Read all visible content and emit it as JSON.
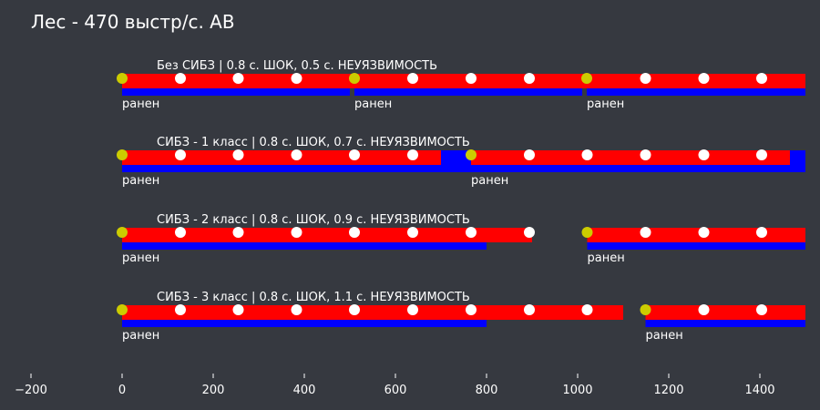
{
  "chart_data": {
    "type": "timeline",
    "title": "Лес - 470 выстр/с. АВ",
    "xlim": [
      -200,
      1500
    ],
    "xticks": [
      -200,
      0,
      200,
      400,
      600,
      800,
      1000,
      1200,
      1400
    ],
    "colors": {
      "stun": "#ff0000",
      "invulnerability": "#0000ff",
      "hit": "#cccc00",
      "shot": "#ffffff",
      "background": "#363940",
      "text": "#ffffff"
    },
    "hit_label": "ранен",
    "rows": [
      {
        "title": "Без СИБЗ | 0.8 с. ШОК, 0.5 с. НЕУЯЗВИМОСТЬ",
        "stun": [
          [
            0,
            510
          ],
          [
            510,
            1020
          ],
          [
            1020,
            1500
          ]
        ],
        "invulnerability": [
          [
            0,
            500
          ],
          [
            510,
            1010
          ],
          [
            1020,
            1500
          ]
        ],
        "hits": [
          0,
          510,
          1020
        ],
        "shots": [
          128,
          255,
          383,
          638,
          766,
          894,
          1149,
          1277,
          1404
        ]
      },
      {
        "title": "СИБЗ - 1 класс | 0.8 с. ШОК, 0.7 с. НЕУЯЗВИМОСТЬ",
        "stun": [
          [
            0,
            700
          ],
          [
            766,
            1466
          ]
        ],
        "invulnerability": [
          [
            0,
            700
          ],
          [
            700,
            766
          ],
          [
            766,
            1500
          ]
        ],
        "hits": [
          0,
          766
        ],
        "shots": [
          128,
          255,
          383,
          510,
          638,
          894,
          1021,
          1149,
          1277,
          1404
        ]
      },
      {
        "title": "СИБЗ - 2 класс | 0.8 с. ШОК, 0.9 с. НЕУЯЗВИМОСТЬ",
        "stun": [
          [
            0,
            900
          ],
          [
            1021,
            1500
          ]
        ],
        "invulnerability": [
          [
            0,
            800
          ],
          [
            1021,
            1500
          ]
        ],
        "hits": [
          0,
          1021
        ],
        "shots": [
          128,
          255,
          383,
          510,
          638,
          766,
          894,
          1149,
          1277,
          1404
        ]
      },
      {
        "title": "СИБЗ - 3 класс | 0.8 с. ШОК, 1.1 с. НЕУЯЗВИМОСТЬ",
        "stun": [
          [
            0,
            1100
          ],
          [
            1149,
            1500
          ]
        ],
        "invulnerability": [
          [
            0,
            800
          ],
          [
            1149,
            1500
          ]
        ],
        "hits": [
          0,
          1149
        ],
        "shots": [
          128,
          255,
          383,
          510,
          638,
          766,
          894,
          1021,
          1277,
          1404
        ]
      }
    ]
  }
}
